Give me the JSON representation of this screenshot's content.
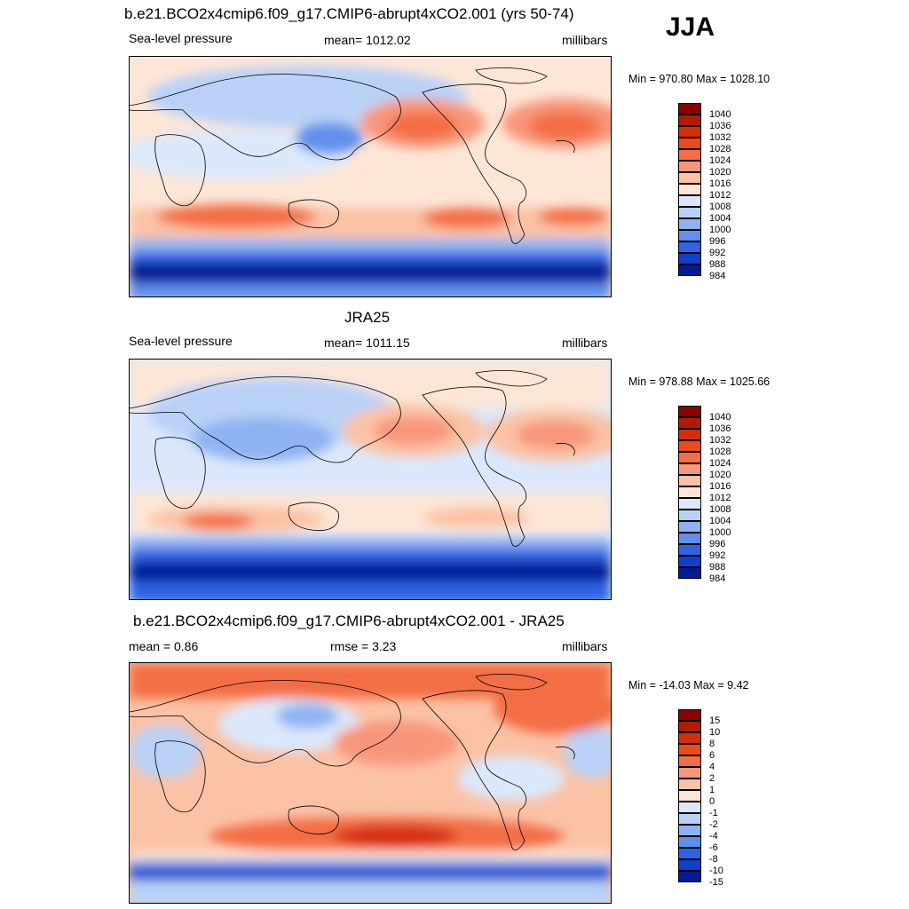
{
  "season": "JJA",
  "panels": [
    {
      "title": "b.e21.BCO2x4cmip6.f09_g17.CMIP6-abrupt4xCO2.001 (yrs 50-74)",
      "left": "Sea-level pressure",
      "center": "mean= 1012.02",
      "right": "millibars",
      "minmax": "Min = 970.80 Max = 1028.10",
      "legend_labels": [
        "1040",
        "1036",
        "1032",
        "1028",
        "1024",
        "1020",
        "1016",
        "1012",
        "1008",
        "1004",
        "1000",
        "996",
        "992",
        "988",
        "984"
      ],
      "legend_colors": [
        "#8b0000",
        "#b31a00",
        "#d62d08",
        "#ec4b1c",
        "#f36e45",
        "#f8967a",
        "#fbc2a6",
        "#fde6d6",
        "#dbe8fb",
        "#b9d1f7",
        "#8fb2f2",
        "#6190ec",
        "#2f63e3",
        "#0f3fce",
        "#001c98"
      ]
    },
    {
      "title": "JRA25",
      "left": "Sea-level pressure",
      "center": "mean= 1011.15",
      "right": "millibars",
      "minmax": "Min = 978.88 Max = 1025.66",
      "legend_labels": [
        "1040",
        "1036",
        "1032",
        "1028",
        "1024",
        "1020",
        "1016",
        "1012",
        "1008",
        "1004",
        "1000",
        "996",
        "992",
        "988",
        "984"
      ],
      "legend_colors": [
        "#8b0000",
        "#b31a00",
        "#d62d08",
        "#ec4b1c",
        "#f36e45",
        "#f8967a",
        "#fbc2a6",
        "#fde6d6",
        "#dbe8fb",
        "#b9d1f7",
        "#8fb2f2",
        "#6190ec",
        "#2f63e3",
        "#0f3fce",
        "#001c98"
      ]
    },
    {
      "title": "b.e21.BCO2x4cmip6.f09_g17.CMIP6-abrupt4xCO2.001 - JRA25",
      "left": "mean =   0.86",
      "center": "rmse =   3.23",
      "right": "millibars",
      "minmax": "Min = -14.03 Max =   9.42",
      "legend_labels": [
        "15",
        "10",
        "8",
        "6",
        "4",
        "2",
        "1",
        "0",
        "-1",
        "-2",
        "-4",
        "-6",
        "-8",
        "-10",
        "-15"
      ],
      "legend_colors": [
        "#8b0000",
        "#b31a00",
        "#d62d08",
        "#ec4b1c",
        "#f36e45",
        "#f8967a",
        "#fbc2a6",
        "#fde6d6",
        "#dbe8fb",
        "#b9d1f7",
        "#8fb2f2",
        "#6190ec",
        "#2f63e3",
        "#0f3fce",
        "#001c98"
      ]
    }
  ]
}
